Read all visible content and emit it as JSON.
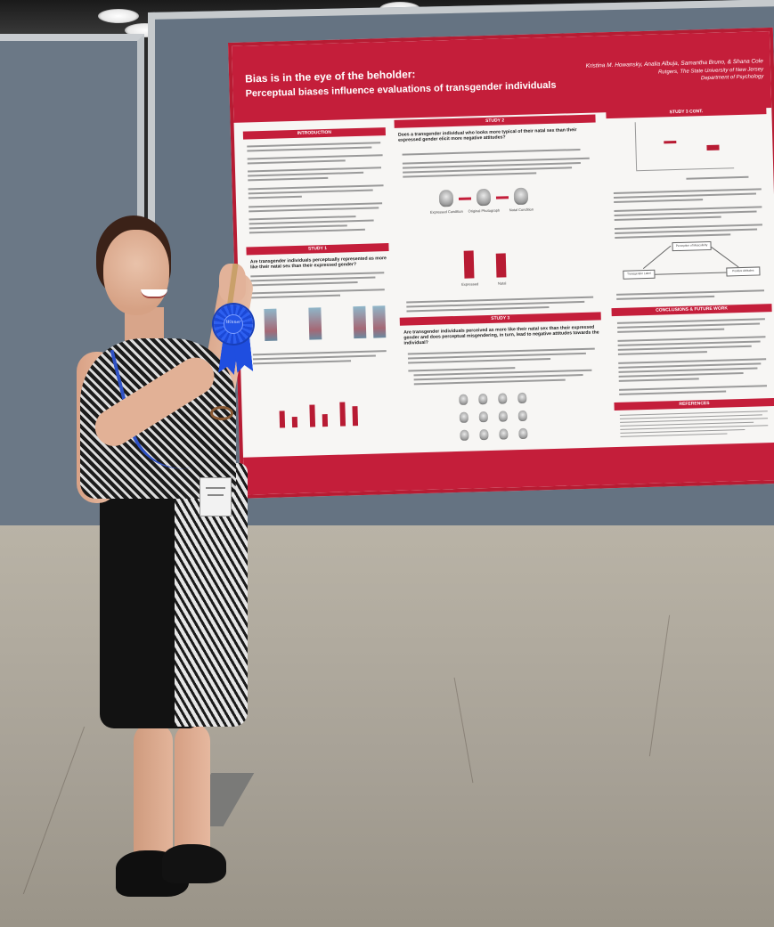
{
  "poster": {
    "title": "Bias is in the eye of the beholder:",
    "subtitle": "Perceptual biases influence evaluations of transgender individuals",
    "authors": "Kristina M. Howansky, Analia Albuja, Samantha Bruno, & Shana Cole",
    "affiliation": "Rutgers, The State University of New Jersey",
    "department": "Department of Psychology",
    "sections": {
      "introduction": "INTRODUCTION",
      "study1": "STUDY 1",
      "study2": "STUDY 2",
      "study3": "STUDY 3",
      "study3_cont": "STUDY 3 CONT.",
      "conclusions": "CONCLUSIONS & FUTURE WORK",
      "references": "REFERENCES"
    },
    "study1_question": "Are transgender individuals perceptually represented as more like their natal sex than their expressed gender?",
    "study2_question": "Does a transgender individual who looks more typical of their natal sex than their expressed gender elicit more negative attitudes?",
    "study3_question": "Are transgender individuals perceived as more like their natal sex than their expressed gender and does perceptual misgendering, in turn, lead to negative attitudes towards the individual?",
    "study2_face_labels": [
      "Expressed Condition",
      "Original Photograph",
      "Natal Condition"
    ],
    "study2_bar_labels": [
      "Expressed",
      "Natal"
    ],
    "study2_bar_values": [
      0.62,
      0.55
    ],
    "study1_bar_values": [
      0.55,
      0.35,
      0.75,
      0.4,
      0.8,
      0.65
    ],
    "mediation_labels": {
      "top": "Perception of Masculinity",
      "left": "Transgender Label",
      "right": "Positive Attitudes"
    },
    "ribbon_text": "Winner"
  }
}
